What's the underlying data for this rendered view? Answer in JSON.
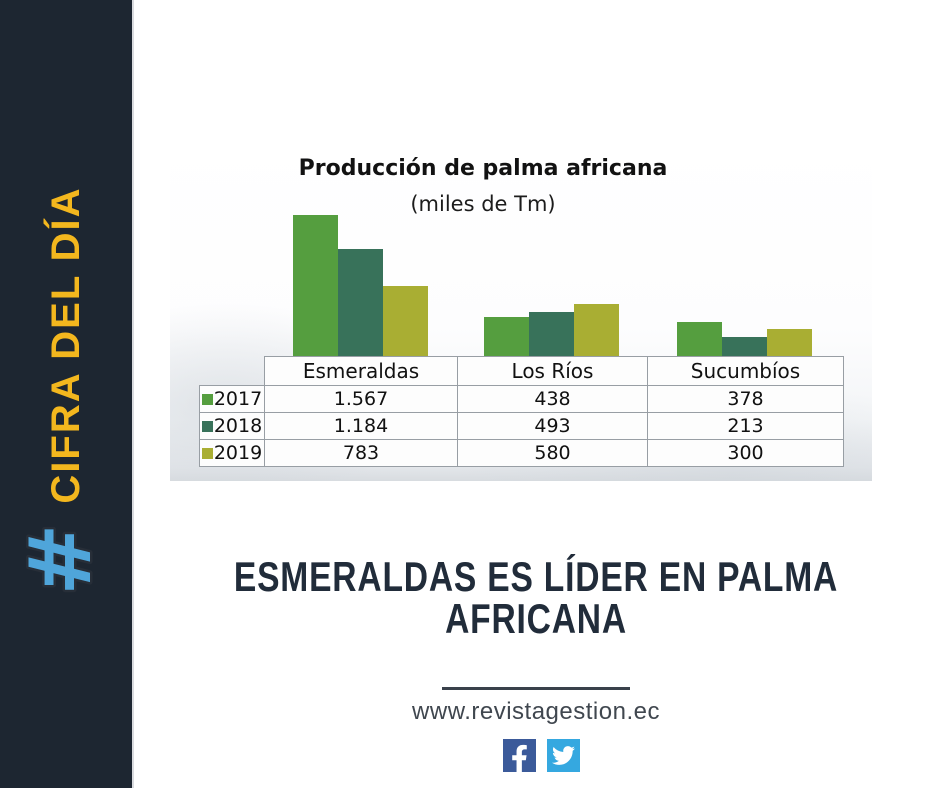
{
  "sidebar": {
    "hashtag": "#",
    "label": "CIFRA DEL DÍA",
    "bg_color": "#1d2631",
    "label_color": "#f3b71e",
    "hashtag_color": "#4fa5da"
  },
  "chart_data": {
    "type": "bar",
    "title": "Producción de palma africana",
    "subtitle": "(miles de Tm)",
    "unit": "miles de Tm",
    "categories": [
      "Esmeraldas",
      "Los Ríos",
      "Sucumbíos"
    ],
    "series": [
      {
        "name": "2017",
        "color": "#559e3f",
        "values": [
          1567,
          438,
          378
        ],
        "labels": [
          "1.567",
          "438",
          "378"
        ]
      },
      {
        "name": "2018",
        "color": "#38725a",
        "values": [
          1184,
          493,
          213
        ],
        "labels": [
          "1.184",
          "493",
          "213"
        ]
      },
      {
        "name": "2019",
        "color": "#a9ae33",
        "values": [
          783,
          580,
          300
        ],
        "labels": [
          "783",
          "580",
          "300"
        ]
      }
    ],
    "ylim": [
      0,
      1600
    ],
    "grid": false,
    "legend_position": "table-left"
  },
  "headline": "ESMERALDAS ES LÍDER EN PALMA AFRICANA",
  "footer": {
    "url": "www.revistagestion.ec",
    "social": [
      {
        "name": "facebook-icon",
        "color": "#3b5a9a"
      },
      {
        "name": "twitter-icon",
        "color": "#35a8e0"
      }
    ]
  }
}
